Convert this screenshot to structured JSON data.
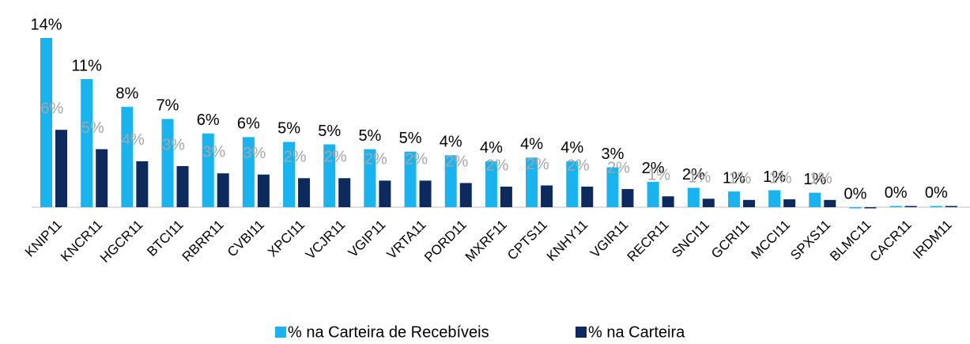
{
  "chart_data": {
    "type": "bar",
    "categories": [
      "KNIP11",
      "KNCR11",
      "HGCR11",
      "BTCI11",
      "RBRR11",
      "CVBI11",
      "XPCI11",
      "VCJR11",
      "VGIP11",
      "VRTA11",
      "PORD11",
      "MXRF11",
      "CPTS11",
      "KNHY11",
      "VGIR11",
      "RECR11",
      "SNCI11",
      "GCRI11",
      "MCCI11",
      "SPXS11",
      "BLMC11",
      "CACR11",
      "IRDM11"
    ],
    "series": [
      {
        "name": "% na Carteira de Recebíveis",
        "color": "#19b4f0",
        "values": [
          14.0,
          10.6,
          8.3,
          7.3,
          6.1,
          5.8,
          5.4,
          5.2,
          4.8,
          4.6,
          4.3,
          3.8,
          4.1,
          3.8,
          3.3,
          2.1,
          1.6,
          1.3,
          1.4,
          1.2,
          0,
          0.1,
          0.1
        ],
        "value_labels": [
          "14%",
          "11%",
          "8%",
          "7%",
          "6%",
          "6%",
          "5%",
          "5%",
          "5%",
          "5%",
          "4%",
          "4%",
          "4%",
          "4%",
          "3%",
          "2%",
          "2%",
          "1%",
          "1%",
          "1%",
          "0%",
          "0%",
          "0%"
        ]
      },
      {
        "name": "% na Carteira",
        "color": "#0c2a5e",
        "values": [
          6.4,
          4.8,
          3.8,
          3.4,
          2.8,
          2.7,
          2.4,
          2.4,
          2.2,
          2.2,
          2.0,
          1.7,
          1.8,
          1.7,
          1.5,
          0.9,
          0.7,
          0.6,
          0.65,
          0.6,
          0,
          0.1,
          0.1
        ],
        "value_labels": [
          "6%",
          "5%",
          "4%",
          "3%",
          "3%",
          "3%",
          "2%",
          "2%",
          "2%",
          "2%",
          "2%",
          "2%",
          "2%",
          "2%",
          "2%",
          "1%",
          "1%",
          "1%",
          "1%",
          "1%",
          null,
          null,
          null
        ]
      }
    ],
    "legend": "bottom"
  }
}
